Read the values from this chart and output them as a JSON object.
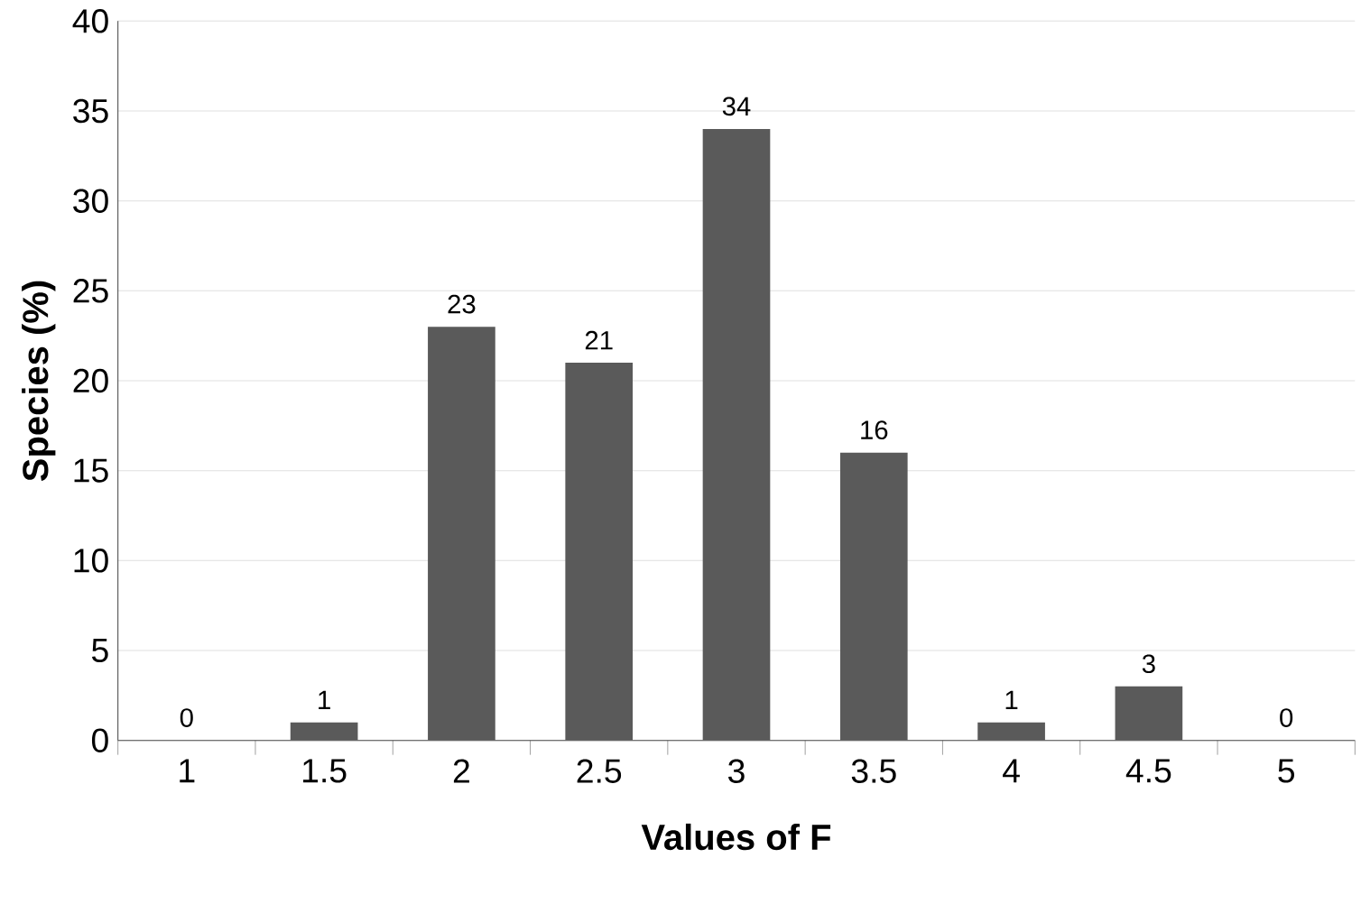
{
  "chart_data": {
    "type": "bar",
    "xlabel": "Values of F",
    "ylabel": "Species (%)",
    "categories": [
      "1",
      "1.5",
      "2",
      "2.5",
      "3",
      "3.5",
      "4",
      "4.5",
      "5"
    ],
    "values": [
      0,
      1,
      23,
      21,
      34,
      16,
      1,
      3,
      0
    ],
    "color": "#5a5a5a",
    "ylim": [
      0,
      40
    ],
    "yticks": [
      0,
      5,
      10,
      15,
      20,
      25,
      30,
      35,
      40
    ],
    "grid": "y",
    "data_labels": true
  }
}
